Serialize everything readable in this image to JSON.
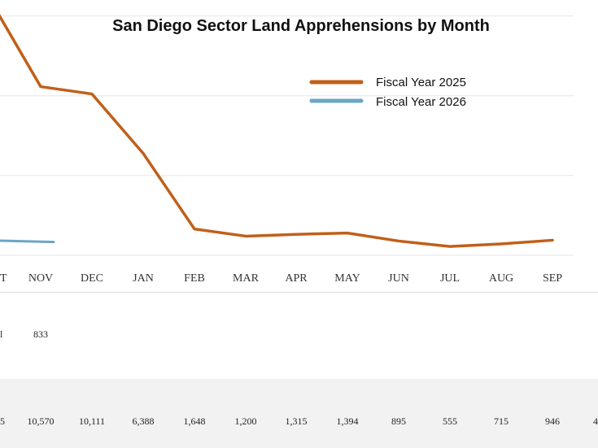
{
  "chart_data": {
    "type": "line",
    "title": "San Diego Sector Land Apprehensions by Month",
    "categories": [
      "OCT",
      "NOV",
      "DEC",
      "JAN",
      "FEB",
      "MAR",
      "APR",
      "MAY",
      "JUN",
      "JUL",
      "AUG",
      "SEP"
    ],
    "visible_tick_labels": [
      "T",
      "NOV",
      "DEC",
      "JAN",
      "FEB",
      "MAR",
      "APR",
      "MAY",
      "JUN",
      "JUL",
      "AUG",
      "SEP"
    ],
    "ylim": [
      0,
      15000
    ],
    "grid": true,
    "legend_position": "top-right",
    "series": [
      {
        "name": "Fiscal Year 2025",
        "color": "#c0601a",
        "values": [
          16000,
          10570,
          10111,
          6388,
          1648,
          1200,
          1315,
          1394,
          895,
          555,
          715,
          946
        ]
      },
      {
        "name": "Fiscal Year 2026",
        "color": "#6aa6c8",
        "values": [
          920,
          833,
          null,
          null,
          null,
          null,
          null,
          null,
          null,
          null,
          null,
          null
        ]
      }
    ]
  },
  "table": {
    "fy2026_row": [
      "",
      "833",
      "",
      "",
      "",
      "",
      "",
      "",
      "",
      "",
      "",
      ""
    ],
    "fy2025_row": [
      "5",
      "10,570",
      "10,111",
      "6,388",
      "1,648",
      "1,200",
      "1,315",
      "1,394",
      "895",
      "555",
      "715",
      "946"
    ],
    "fy2026_partial_left": "l",
    "trailing_partial": "4"
  },
  "colors": {
    "grid": "#e6e6e6",
    "axis": "#b9b9b9",
    "band": "#f2f2f2"
  }
}
